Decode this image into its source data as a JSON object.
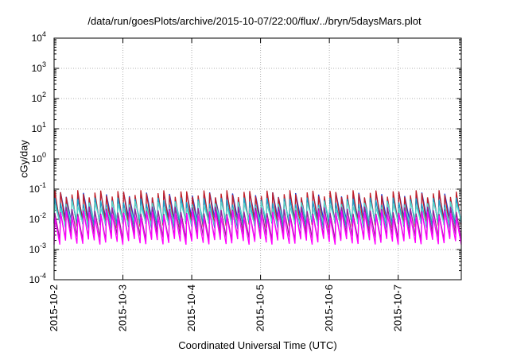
{
  "chart_data": {
    "type": "line",
    "title": "/data/run/goesPlots/archive/2015-10-07/22:00/flux/../bryn/5daysMars.plot",
    "xlabel": "Coordinated Universal Time (UTC)",
    "ylabel": "cGy/day",
    "x_tick_labels": [
      "2015-10-2",
      "2015-10-3",
      "2015-10-4",
      "2015-10-5",
      "2015-10-6",
      "2015-10-7"
    ],
    "xlim": [
      "2015-10-02",
      "2015-10-07 22:00"
    ],
    "y_scale": "log",
    "ylim": [
      0.0001,
      10000
    ],
    "y_ticks": [
      {
        "base": "10",
        "exp": "-4"
      },
      {
        "base": "10",
        "exp": "-3"
      },
      {
        "base": "10",
        "exp": "-2"
      },
      {
        "base": "10",
        "exp": "-1"
      },
      {
        "base": "10",
        "exp": "0"
      },
      {
        "base": "10",
        "exp": "1"
      },
      {
        "base": "10",
        "exp": "2"
      },
      {
        "base": "10",
        "exp": "3"
      },
      {
        "base": "10",
        "exp": "4"
      }
    ],
    "grid": true,
    "legend": "none",
    "pattern": "sawtooth, about 12 peaks per day",
    "series": [
      {
        "color": "#1f3fd6",
        "peak": 0.06,
        "trough": 0.009
      },
      {
        "color": "#c0202a",
        "peak": 0.07,
        "trough": 0.006
      },
      {
        "color": "#1aa0c8",
        "peak": 0.04,
        "trough": 0.006
      },
      {
        "color": "#5ad4c8",
        "peak": 0.03,
        "trough": 0.008
      },
      {
        "color": "#9b1f9b",
        "peak": 0.02,
        "trough": 0.0025
      },
      {
        "color": "#ff00ff",
        "peak": 0.015,
        "trough": 0.0018
      }
    ]
  }
}
